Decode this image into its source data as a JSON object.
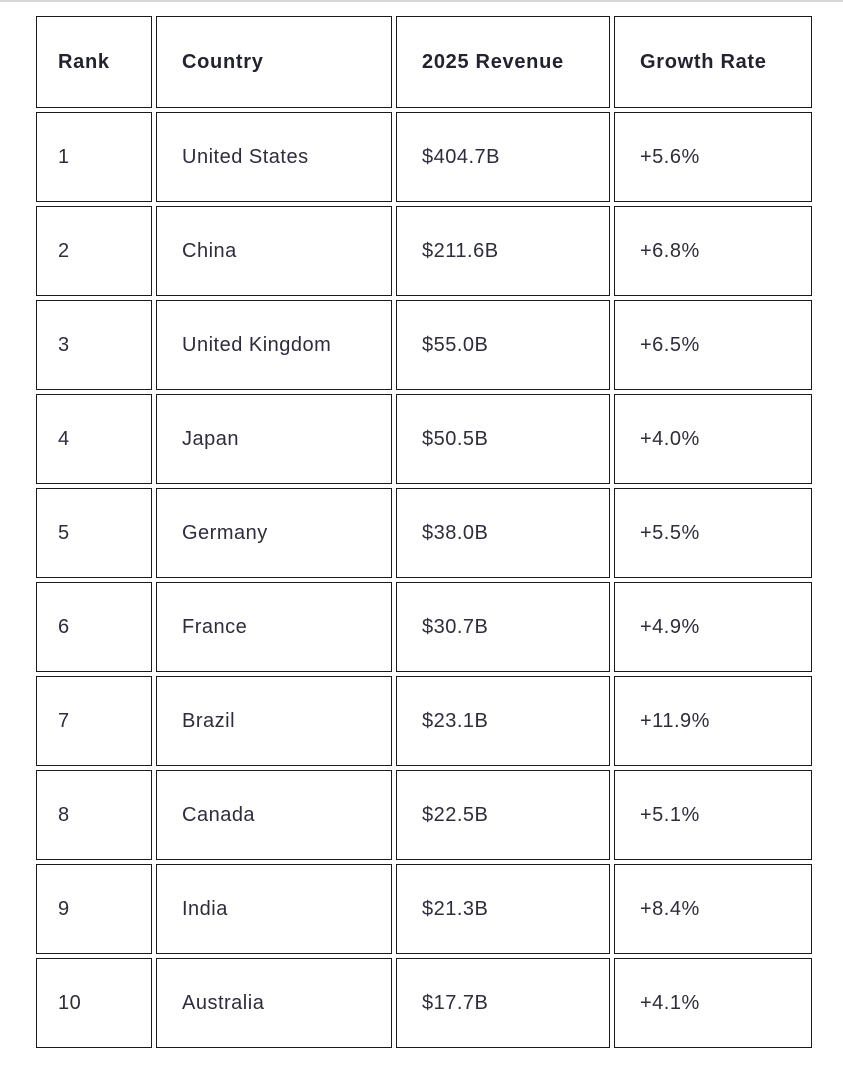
{
  "chart_data": {
    "type": "table",
    "columns": [
      "Rank",
      "Country",
      "2025 Revenue",
      "Growth Rate"
    ],
    "column_keys": [
      "rank",
      "country",
      "revenue",
      "growth"
    ],
    "rows": [
      {
        "rank": "1",
        "country": "United States",
        "revenue": "$404.7B",
        "growth": "+5.6%"
      },
      {
        "rank": "2",
        "country": "China",
        "revenue": "$211.6B",
        "growth": "+6.8%"
      },
      {
        "rank": "3",
        "country": "United Kingdom",
        "revenue": "$55.0B",
        "growth": "+6.5%"
      },
      {
        "rank": "4",
        "country": "Japan",
        "revenue": "$50.5B",
        "growth": "+4.0%"
      },
      {
        "rank": "5",
        "country": "Germany",
        "revenue": "$38.0B",
        "growth": "+5.5%"
      },
      {
        "rank": "6",
        "country": "France",
        "revenue": "$30.7B",
        "growth": "+4.9%"
      },
      {
        "rank": "7",
        "country": "Brazil",
        "revenue": "$23.1B",
        "growth": "+11.9%"
      },
      {
        "rank": "8",
        "country": "Canada",
        "revenue": "$22.5B",
        "growth": "+5.1%"
      },
      {
        "rank": "9",
        "country": "India",
        "revenue": "$21.3B",
        "growth": "+8.4%"
      },
      {
        "rank": "10",
        "country": "Australia",
        "revenue": "$17.7B",
        "growth": "+4.1%"
      }
    ]
  },
  "style": {
    "border_color": "#1b1b1b",
    "text_color": "#2d2d3c",
    "header_text_color": "#23232f",
    "top_divider_color": "#d7d7d7",
    "background": "#ffffff"
  }
}
